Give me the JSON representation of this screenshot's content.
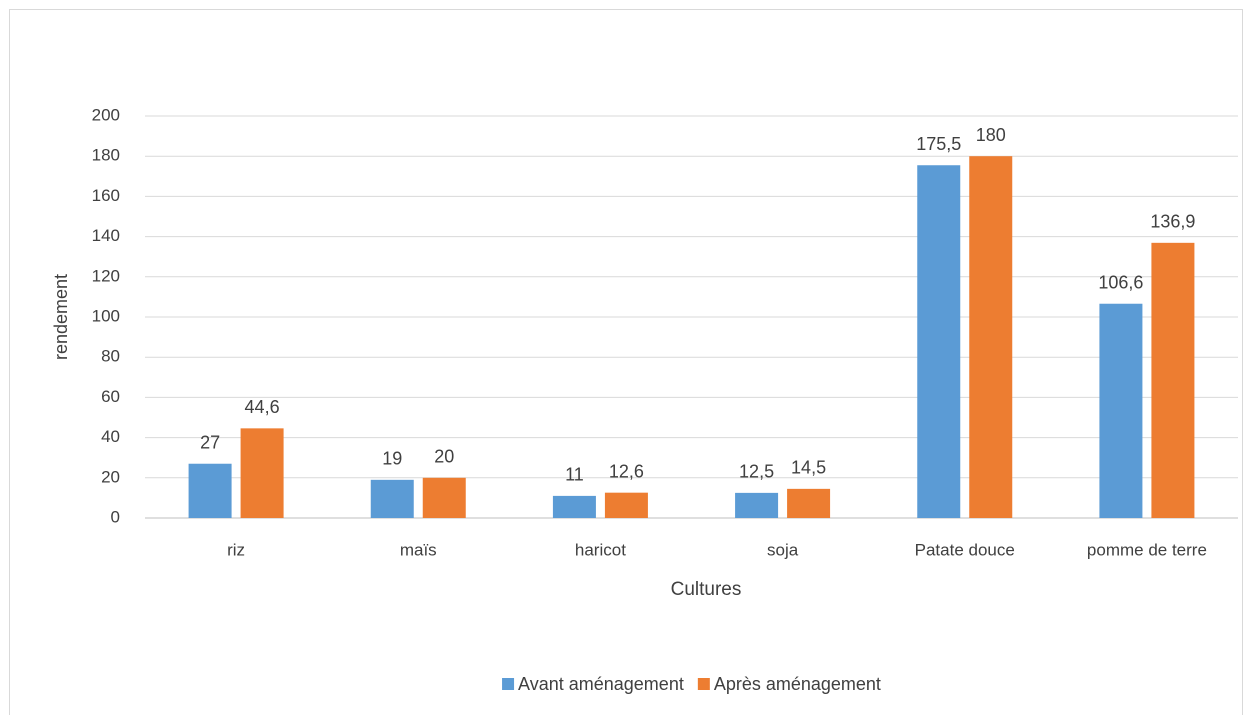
{
  "chart_data": {
    "type": "bar",
    "y_label": "rendement",
    "x_label": "Cultures",
    "categories": [
      "riz",
      "maïs",
      "haricot",
      "soja",
      "Patate douce",
      "pomme de terre"
    ],
    "series": [
      {
        "name": "Avant aménagement",
        "color": "#5b9bd5",
        "values": [
          27,
          19,
          11,
          12.5,
          175.5,
          106.6
        ],
        "value_labels": [
          "27",
          "19",
          "11",
          "12,5",
          "175,5",
          "106,6"
        ]
      },
      {
        "name": "Après aménagement",
        "color": "#ed7d31",
        "values": [
          44.6,
          20,
          12.6,
          14.5,
          180,
          136.9
        ],
        "value_labels": [
          "44,6",
          "20",
          "12,6",
          "14,5",
          "180",
          "136,9"
        ]
      }
    ],
    "ylim": [
      0,
      200
    ],
    "yticks": [
      0,
      20,
      40,
      60,
      80,
      100,
      120,
      140,
      160,
      180,
      200
    ],
    "grid": true,
    "legend": "bottom"
  }
}
